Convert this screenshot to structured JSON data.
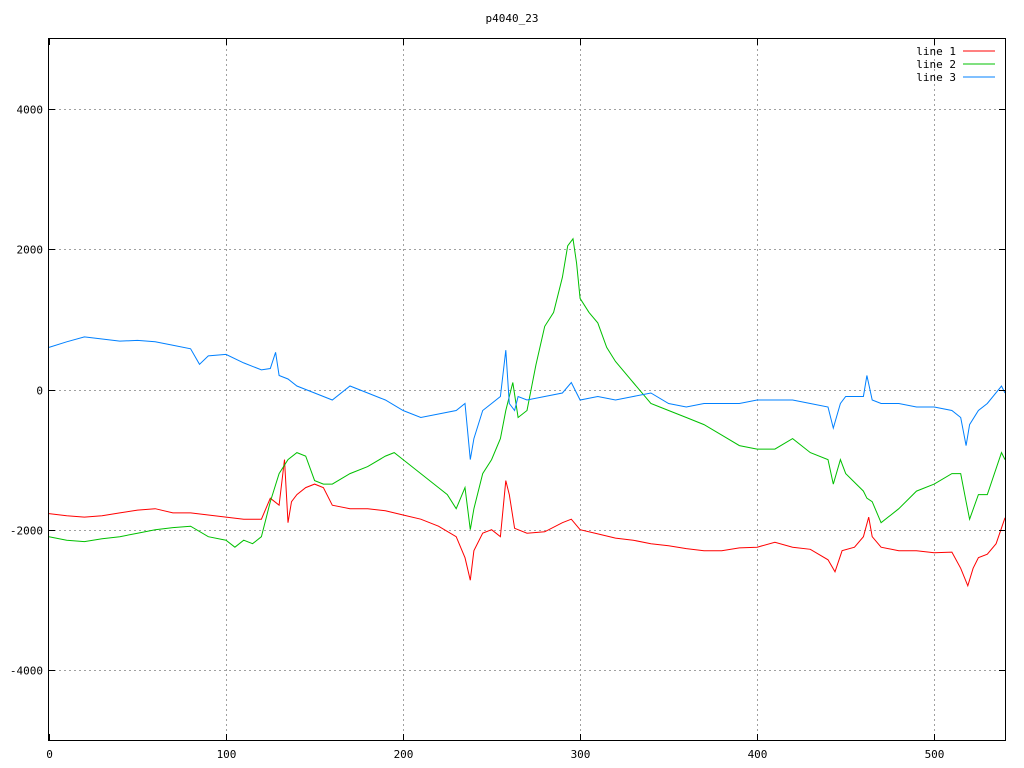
{
  "chart_data": {
    "type": "line",
    "title": "p4040_23",
    "xlabel": "",
    "ylabel": "",
    "xlim": [
      0,
      540
    ],
    "ylim": [
      -5000,
      5000
    ],
    "x_ticks": [
      0,
      100,
      200,
      300,
      400,
      500
    ],
    "y_ticks": [
      -4000,
      -2000,
      0,
      2000,
      4000
    ],
    "x_tick_labels": [
      "0",
      "100",
      "200",
      "300",
      "400",
      "500"
    ],
    "y_tick_labels": [
      "-4000",
      "-2000",
      "0",
      "2000",
      "4000"
    ],
    "grid": true,
    "legend_position": "top-right",
    "series": [
      {
        "name": "line 1",
        "color": "#ff0000",
        "x": [
          0,
          10,
          20,
          30,
          40,
          50,
          60,
          70,
          80,
          90,
          100,
          110,
          120,
          125,
          130,
          133,
          135,
          137,
          140,
          145,
          150,
          155,
          160,
          170,
          180,
          190,
          200,
          210,
          220,
          230,
          235,
          238,
          240,
          245,
          250,
          255,
          258,
          260,
          263,
          265,
          270,
          280,
          290,
          295,
          300,
          310,
          320,
          330,
          340,
          350,
          360,
          370,
          380,
          390,
          400,
          410,
          420,
          430,
          440,
          444,
          448,
          455,
          460,
          463,
          465,
          470,
          480,
          490,
          500,
          510,
          515,
          519,
          522,
          525,
          530,
          535,
          540
        ],
        "values": [
          -1770,
          -1800,
          -1820,
          -1800,
          -1760,
          -1720,
          -1700,
          -1760,
          -1760,
          -1790,
          -1820,
          -1850,
          -1850,
          -1550,
          -1650,
          -1000,
          -1900,
          -1600,
          -1500,
          -1400,
          -1350,
          -1400,
          -1650,
          -1700,
          -1700,
          -1730,
          -1790,
          -1850,
          -1950,
          -2100,
          -2400,
          -2720,
          -2300,
          -2050,
          -2000,
          -2100,
          -1300,
          -1500,
          -1980,
          -2000,
          -2050,
          -2030,
          -1900,
          -1850,
          -2000,
          -2060,
          -2120,
          -2150,
          -2200,
          -2230,
          -2270,
          -2300,
          -2300,
          -2260,
          -2250,
          -2180,
          -2250,
          -2280,
          -2430,
          -2600,
          -2300,
          -2250,
          -2100,
          -1820,
          -2100,
          -2250,
          -2300,
          -2300,
          -2330,
          -2320,
          -2550,
          -2800,
          -2550,
          -2400,
          -2350,
          -2200,
          -1830
        ]
      },
      {
        "name": "line 2",
        "color": "#00c000",
        "x": [
          0,
          10,
          20,
          30,
          40,
          50,
          60,
          70,
          80,
          90,
          100,
          105,
          110,
          115,
          120,
          125,
          130,
          135,
          140,
          145,
          150,
          155,
          160,
          170,
          180,
          190,
          195,
          200,
          210,
          220,
          225,
          230,
          235,
          238,
          240,
          245,
          250,
          255,
          258,
          262,
          265,
          270,
          275,
          280,
          285,
          290,
          293,
          296,
          298,
          300,
          305,
          310,
          315,
          320,
          330,
          340,
          345,
          350,
          360,
          370,
          380,
          390,
          400,
          410,
          420,
          430,
          440,
          443,
          447,
          450,
          460,
          462,
          465,
          470,
          480,
          490,
          500,
          510,
          515,
          518,
          520,
          525,
          530,
          538,
          540
        ],
        "values": [
          -2100,
          -2150,
          -2170,
          -2130,
          -2100,
          -2050,
          -2000,
          -1970,
          -1950,
          -2100,
          -2150,
          -2250,
          -2150,
          -2200,
          -2100,
          -1600,
          -1200,
          -1000,
          -900,
          -950,
          -1300,
          -1350,
          -1350,
          -1200,
          -1100,
          -950,
          -900,
          -1000,
          -1200,
          -1400,
          -1500,
          -1700,
          -1400,
          -2000,
          -1700,
          -1200,
          -1000,
          -700,
          -300,
          100,
          -400,
          -300,
          350,
          900,
          1100,
          1600,
          2050,
          2150,
          1800,
          1300,
          1100,
          950,
          600,
          400,
          100,
          -200,
          -250,
          -300,
          -400,
          -500,
          -650,
          -800,
          -850,
          -850,
          -700,
          -900,
          -1000,
          -1350,
          -1000,
          -1200,
          -1450,
          -1550,
          -1600,
          -1900,
          -1700,
          -1450,
          -1350,
          -1200,
          -1200,
          -1600,
          -1850,
          -1500,
          -1500,
          -900,
          -1000
        ]
      },
      {
        "name": "line 3",
        "color": "#0080ff",
        "x": [
          0,
          10,
          20,
          30,
          40,
          50,
          60,
          70,
          80,
          85,
          90,
          100,
          110,
          120,
          125,
          128,
          130,
          135,
          140,
          150,
          160,
          170,
          180,
          190,
          200,
          210,
          220,
          230,
          235,
          238,
          240,
          245,
          250,
          255,
          258,
          260,
          263,
          265,
          270,
          280,
          290,
          295,
          300,
          310,
          320,
          330,
          340,
          350,
          360,
          370,
          380,
          390,
          400,
          410,
          420,
          430,
          440,
          443,
          447,
          450,
          460,
          462,
          465,
          470,
          480,
          490,
          500,
          510,
          515,
          518,
          520,
          525,
          530,
          538,
          540
        ],
        "values": [
          600,
          680,
          750,
          720,
          690,
          700,
          680,
          630,
          580,
          360,
          480,
          500,
          380,
          280,
          300,
          530,
          200,
          150,
          50,
          -50,
          -150,
          50,
          -50,
          -150,
          -300,
          -400,
          -350,
          -300,
          -200,
          -1000,
          -700,
          -300,
          -200,
          -100,
          560,
          -200,
          -300,
          -100,
          -150,
          -100,
          -50,
          100,
          -150,
          -100,
          -150,
          -100,
          -50,
          -200,
          -250,
          -200,
          -200,
          -200,
          -150,
          -150,
          -150,
          -200,
          -250,
          -550,
          -200,
          -100,
          -100,
          200,
          -150,
          -200,
          -200,
          -250,
          -250,
          -300,
          -400,
          -800,
          -500,
          -300,
          -200,
          50,
          -50
        ]
      }
    ]
  }
}
